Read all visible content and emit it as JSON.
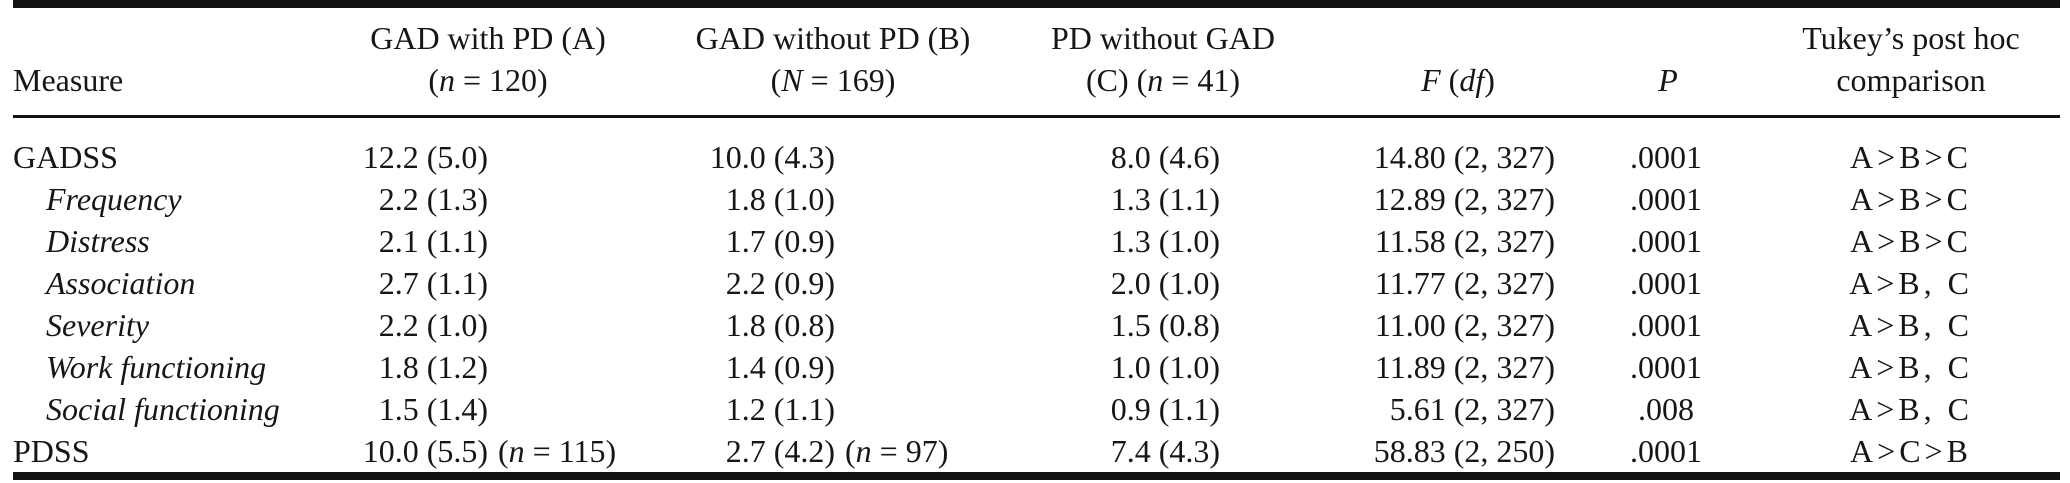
{
  "colors": {
    "ink": "#121212",
    "paper": "#ffffff"
  },
  "table": {
    "header": {
      "measure": "Measure",
      "a": {
        "line1": [
          {
            "t": "GAD with PD (A)"
          }
        ],
        "line2": [
          {
            "t": "("
          },
          {
            "t": "n",
            "i": 1
          },
          {
            "t": " = 120)"
          }
        ]
      },
      "b": {
        "line1": [
          {
            "t": "GAD without PD (B)"
          }
        ],
        "line2": [
          {
            "t": "("
          },
          {
            "t": "N",
            "i": 1
          },
          {
            "t": " = 169)"
          }
        ]
      },
      "c": {
        "line1": [
          {
            "t": "PD without GAD"
          }
        ],
        "line2": [
          {
            "t": "(C) ("
          },
          {
            "t": "n",
            "i": 1
          },
          {
            "t": " = 41)"
          }
        ]
      },
      "f": {
        "line2": [
          {
            "t": "F",
            "i": 1
          },
          {
            "t": " ("
          },
          {
            "t": "df",
            "i": 1
          },
          {
            "t": ")"
          }
        ]
      },
      "p": {
        "line2": [
          {
            "t": "P",
            "i": 1
          }
        ]
      },
      "tukey": {
        "line1": [
          {
            "t": "Tukey’s post hoc"
          }
        ],
        "line2": [
          {
            "t": "comparison"
          }
        ]
      }
    },
    "rows": [
      {
        "measure": [
          {
            "t": "GADSS"
          }
        ],
        "a": {
          "main": "12.2 (5.0)",
          "note": []
        },
        "b": {
          "main": "10.0 (4.3)",
          "note": []
        },
        "c": "8.0 (4.6)",
        "f": "14.80 (2, 327)",
        "p": ".0001",
        "tukey": "A>B>C"
      },
      {
        "measure": [
          {
            "t": "Frequency",
            "i": 1
          }
        ],
        "a": {
          "main": "2.2 (1.3)",
          "note": []
        },
        "b": {
          "main": "1.8 (1.0)",
          "note": []
        },
        "c": "1.3 (1.1)",
        "f": "12.89 (2, 327)",
        "p": ".0001",
        "tukey": "A>B>C"
      },
      {
        "measure": [
          {
            "t": "Distress",
            "i": 1
          }
        ],
        "a": {
          "main": "2.1 (1.1)",
          "note": []
        },
        "b": {
          "main": "1.7 (0.9)",
          "note": []
        },
        "c": "1.3 (1.0)",
        "f": "11.58 (2, 327)",
        "p": ".0001",
        "tukey": "A>B>C"
      },
      {
        "measure": [
          {
            "t": "Association",
            "i": 1
          }
        ],
        "a": {
          "main": "2.7 (1.1)",
          "note": []
        },
        "b": {
          "main": "2.2 (0.9)",
          "note": []
        },
        "c": "2.0 (1.0)",
        "f": "11.77 (2, 327)",
        "p": ".0001",
        "tukey": "A>B, C"
      },
      {
        "measure": [
          {
            "t": "Severity",
            "i": 1
          }
        ],
        "a": {
          "main": "2.2 (1.0)",
          "note": []
        },
        "b": {
          "main": "1.8 (0.8)",
          "note": []
        },
        "c": "1.5 (0.8)",
        "f": "11.00 (2, 327)",
        "p": ".0001",
        "tukey": "A>B, C"
      },
      {
        "measure": [
          {
            "t": "Work functioning",
            "i": 1
          }
        ],
        "a": {
          "main": "1.8 (1.2)",
          "note": []
        },
        "b": {
          "main": "1.4 (0.9)",
          "note": []
        },
        "c": "1.0 (1.0)",
        "f": "11.89 (2, 327)",
        "p": ".0001",
        "tukey": "A>B, C"
      },
      {
        "measure": [
          {
            "t": "Social functioning",
            "i": 1
          }
        ],
        "a": {
          "main": "1.5 (1.4)",
          "note": []
        },
        "b": {
          "main": "1.2 (1.1)",
          "note": []
        },
        "c": "0.9 (1.1)",
        "f": "5.61 (2, 327)",
        "p": ".008",
        "tukey": "A>B, C"
      },
      {
        "measure": [
          {
            "t": "PDSS"
          }
        ],
        "a": {
          "main": "10.0 (5.5)",
          "note": [
            {
              "t": "("
            },
            {
              "t": "n",
              "i": 1
            },
            {
              "t": " = 115)"
            }
          ]
        },
        "b": {
          "main": "2.7 (4.2)",
          "note": [
            {
              "t": "("
            },
            {
              "t": "n",
              "i": 1
            },
            {
              "t": " = 97)"
            }
          ]
        },
        "c": "7.4 (4.3)",
        "f": "58.83 (2, 250)",
        "p": ".0001",
        "tukey": "A>C>B"
      }
    ]
  }
}
